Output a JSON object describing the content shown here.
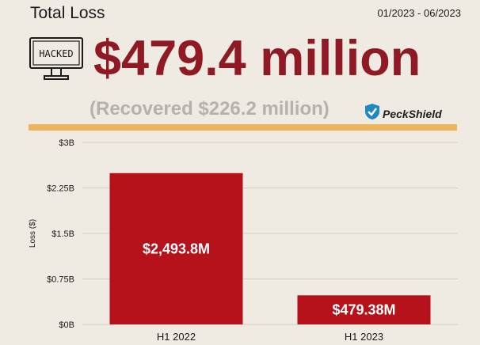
{
  "header": {
    "title": "Total Loss",
    "period": "01/2023 - 06/2023",
    "total_loss": "$479.4 million",
    "recovered": "(Recovered $226.2 million)",
    "icon_text": "HACKED",
    "brand": "PeckShield"
  },
  "colors": {
    "background": "#efebe2",
    "accent": "#8f1a24",
    "bar": "#b5121b",
    "divider": "#f0b55a",
    "muted": "#b5b2ac",
    "brand_blue": "#1e88c7"
  },
  "chart_data": {
    "type": "bar",
    "categories": [
      "H1 2022",
      "H1 2023"
    ],
    "values": [
      2493.8,
      479.38
    ],
    "data_labels": [
      "$2,493.8M",
      "$479.38M"
    ],
    "ylabel": "Loss ($)",
    "yticks": [
      "$0B",
      "$0.75B",
      "$1.5B",
      "$2.25B",
      "$3B"
    ],
    "ytick_values": [
      0,
      750,
      1500,
      2250,
      3000
    ],
    "ylim": [
      0,
      3000
    ],
    "grid": true
  }
}
